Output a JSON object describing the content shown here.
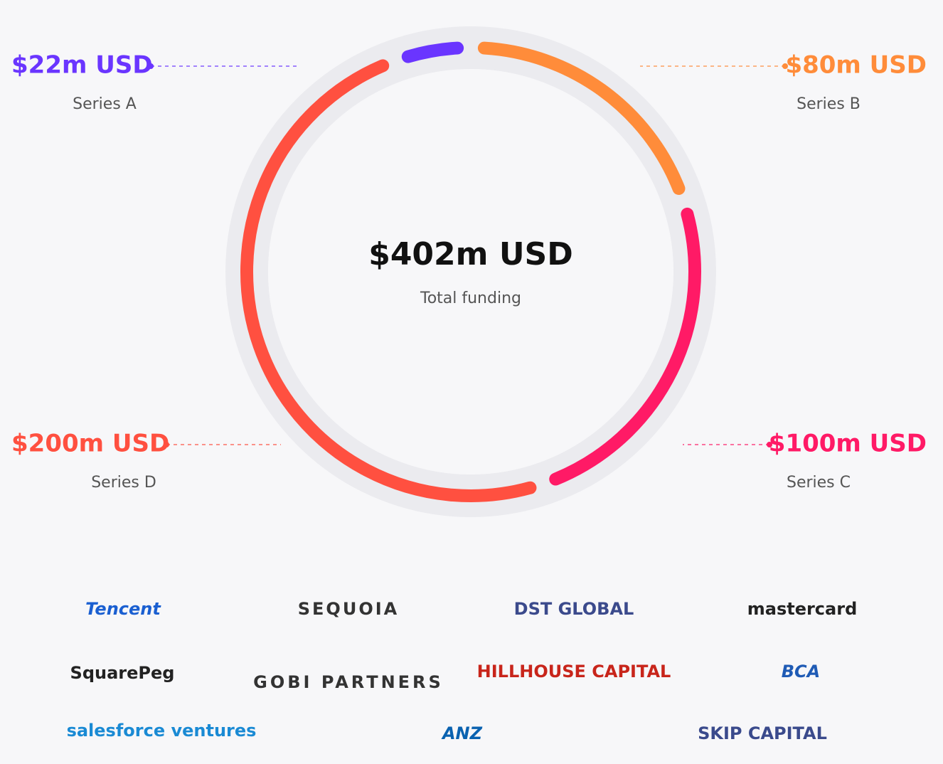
{
  "chart_data": {
    "type": "donut",
    "categories": [
      "Series A",
      "Series B",
      "Series C",
      "Series D"
    ],
    "values": [
      22,
      80,
      100,
      200
    ],
    "value_labels": [
      "$22m USD",
      "$80m USD",
      "$100m USD",
      "$200m USD"
    ],
    "colors": [
      "#6a35ff",
      "#ff8c3a",
      "#ff1a66",
      "#ff5040"
    ],
    "center_text": "$402m USD",
    "center_subtitle": "Total funding"
  },
  "investors": [
    "Tencent",
    "SEQUOIA",
    "DST GLOBAL",
    "mastercard",
    "SquarePeg",
    "GOBI PARTNERS",
    "HILLHOUSE CAPITAL",
    "BCA",
    "salesforce ventures",
    "ANZ",
    "SKIP CAPITAL"
  ]
}
